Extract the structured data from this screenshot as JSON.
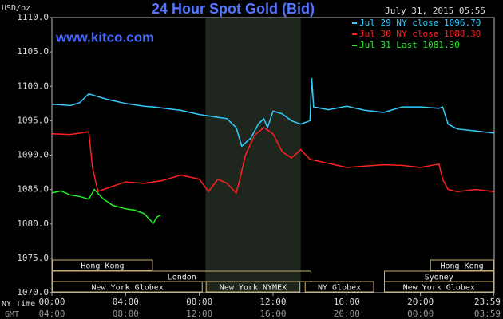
{
  "chart_data": {
    "type": "line",
    "title": "24 Hour Spot Gold (Bid)",
    "subtitle": "July 31, 2015 05:55",
    "watermark": "www.kitco.com",
    "y_label": "USD/oz",
    "x_label": "NY Time",
    "x2_label": "GMT",
    "xlim": [
      0,
      24
    ],
    "ylim": [
      1070,
      1110
    ],
    "yticks": [
      {
        "value": 1070,
        "label": "1070.0"
      },
      {
        "value": 1075,
        "label": "1075.0"
      },
      {
        "value": 1080,
        "label": "1080.0"
      },
      {
        "value": 1085,
        "label": "1085.0"
      },
      {
        "value": 1090,
        "label": "1090.0"
      },
      {
        "value": 1095,
        "label": "1095.0"
      },
      {
        "value": 1100,
        "label": "1100.0"
      },
      {
        "value": 1105,
        "label": "1105.0"
      },
      {
        "value": 1110,
        "label": "1110.0"
      }
    ],
    "xticks": [
      {
        "value": 0,
        "label": "00:00"
      },
      {
        "value": 4,
        "label": "04:00"
      },
      {
        "value": 8,
        "label": "08:00"
      },
      {
        "value": 12,
        "label": "12:00"
      },
      {
        "value": 16,
        "label": "16:00"
      },
      {
        "value": 20,
        "label": "20:00"
      },
      {
        "value": 23.983,
        "label": "23:59"
      }
    ],
    "x2_tick_labels": [
      "04:00",
      "08:00",
      "12:00",
      "16:00",
      "20:00",
      "00:00",
      "03:59"
    ],
    "shaded_x": [
      8.33,
      13.5
    ],
    "sessions": [
      {
        "label": "Hong Kong",
        "start": 0,
        "end": 5.5,
        "row": 0
      },
      {
        "label": "Hong Kong",
        "start": 20.5,
        "end": 24,
        "row": 0
      },
      {
        "label": "London",
        "start": 0,
        "end": 14.1,
        "row": 1
      },
      {
        "label": "Sydney",
        "start": 18,
        "end": 24,
        "row": 1
      },
      {
        "label": "New York Globex",
        "start": 0,
        "end": 8.2,
        "row": 2
      },
      {
        "label": "New York NYMEX",
        "start": 8.33,
        "end": 13.5,
        "row": 2
      },
      {
        "label": "NY Globex",
        "start": 13.7,
        "end": 17.5,
        "row": 2
      },
      {
        "label": "New York Globex",
        "start": 18,
        "end": 24,
        "row": 2
      }
    ],
    "series": [
      {
        "name": "Jul 29 NY close 1096.70",
        "color": "#33ccff",
        "x": [
          0,
          1,
          1.5,
          2,
          2.5,
          3,
          4,
          5,
          5.5,
          7,
          8,
          9,
          9.5,
          10,
          10.3,
          10.8,
          11.2,
          11.5,
          11.7,
          12,
          12.5,
          13,
          13.5,
          14,
          14.1,
          14.2,
          15,
          16,
          17,
          18,
          19,
          20,
          21,
          21.2,
          21.5,
          22,
          23,
          24
        ],
        "values": [
          1097.4,
          1097.2,
          1097.6,
          1098.9,
          1098.5,
          1098.1,
          1097.5,
          1097.1,
          1097,
          1096.5,
          1095.9,
          1095.5,
          1095.3,
          1094,
          1091.3,
          1092.5,
          1094.5,
          1095.3,
          1094,
          1096.4,
          1096,
          1095,
          1094.5,
          1095,
          1101.2,
          1097,
          1096.6,
          1097.1,
          1096.5,
          1096.2,
          1097,
          1097,
          1096.8,
          1097,
          1094.5,
          1093.8,
          1093.5,
          1093.2
        ]
      },
      {
        "name": "Jul 30 NY close 1088.30",
        "color": "#ff2020",
        "x": [
          0,
          1,
          2,
          2.2,
          2.5,
          3,
          4,
          5,
          6,
          7,
          8,
          8.5,
          9,
          9.5,
          10,
          10.2,
          10.5,
          11,
          11.5,
          12,
          12.5,
          13,
          13.5,
          14,
          15,
          16,
          17,
          18,
          19,
          20,
          21,
          21.2,
          21.5,
          22,
          23,
          24
        ],
        "values": [
          1093.1,
          1093,
          1093.4,
          1088.2,
          1084.7,
          1085.2,
          1086.1,
          1085.9,
          1086.3,
          1087.1,
          1086.5,
          1084.7,
          1086.5,
          1085.9,
          1084.5,
          1086.5,
          1090,
          1092.9,
          1094,
          1093.1,
          1090.5,
          1089.6,
          1090.8,
          1089.4,
          1088.8,
          1088.2,
          1088.4,
          1088.6,
          1088.5,
          1088.2,
          1088.7,
          1086.5,
          1085,
          1084.7,
          1085,
          1084.7
        ]
      },
      {
        "name": "Jul 31 Last 1081.30",
        "color": "#22ee22",
        "x": [
          0,
          0.5,
          1,
          1.5,
          2,
          2.3,
          2.8,
          3.3,
          4,
          4.5,
          5,
          5.5,
          5.7,
          5.9
        ],
        "values": [
          1084.5,
          1084.8,
          1084.2,
          1084,
          1083.6,
          1085,
          1083.6,
          1082.7,
          1082.2,
          1082,
          1081.5,
          1080.1,
          1081,
          1081.3
        ]
      }
    ]
  }
}
